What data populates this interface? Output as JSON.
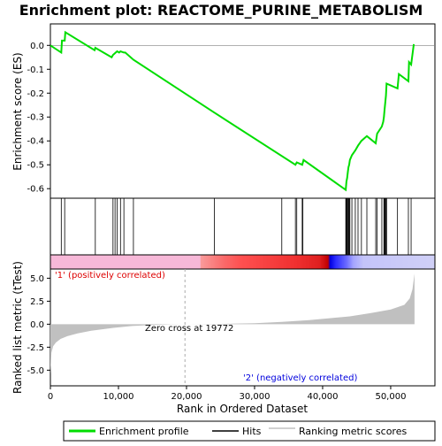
{
  "chart_data": {
    "type": "line",
    "title": "Enrichment plot: REACTOME_PURINE_METABOLISM",
    "xlabel": "Rank in Ordered Dataset",
    "es_ylabel": "Enrichment score (ES)",
    "metric_ylabel": "Ranked list metric (tTest)",
    "xlim": [
      0,
      56500
    ],
    "es_ylim": [
      -0.64,
      0.09
    ],
    "metric_ylim": [
      -6.7,
      6.0
    ],
    "x_ticks": [
      0,
      10000,
      20000,
      30000,
      40000,
      50000
    ],
    "x_tick_labels": [
      "0",
      "10,000",
      "20,000",
      "30,000",
      "40,000",
      "50,000"
    ],
    "es_ticks": [
      0.0,
      -0.1,
      -0.2,
      -0.3,
      -0.4,
      -0.5,
      -0.6
    ],
    "es_tick_labels": [
      "0.0",
      "-0.1",
      "-0.2",
      "-0.3",
      "-0.4",
      "-0.5",
      "-0.6"
    ],
    "metric_ticks": [
      5.0,
      2.5,
      0.0,
      -2.5,
      -5.0
    ],
    "metric_tick_labels": [
      "5.0",
      "2.5",
      "0.0",
      "-2.5",
      "-5.0"
    ],
    "grid": false,
    "legend_position": "bottom",
    "legend": {
      "enrichment_profile": "Enrichment profile",
      "hits": "Hits",
      "ranking_metric": "Ranking metric scores"
    },
    "annotations": {
      "positive_label": "'1' (positively correlated)",
      "negative_label": "'2' (negatively correlated)",
      "zero_cross": "Zero cross at 19772"
    },
    "zero_cross": 19772,
    "es_curve": {
      "x": [
        0,
        1600,
        1700,
        2100,
        2200,
        6500,
        6600,
        9000,
        9200,
        9600,
        9800,
        10100,
        10300,
        10800,
        11000,
        12200,
        24000,
        36000,
        36200,
        37000,
        37200,
        43400,
        43500,
        43600,
        43700,
        43800,
        43900,
        44000,
        44300,
        44800,
        45200,
        45700,
        46500,
        47800,
        48000,
        48700,
        48900,
        49000,
        49100,
        49200,
        49300,
        49400,
        51000,
        51200,
        52600,
        52700,
        53000,
        53400
      ],
      "y": [
        0.0,
        -0.03,
        0.02,
        0.02,
        0.055,
        -0.02,
        -0.01,
        -0.05,
        -0.04,
        -0.03,
        -0.025,
        -0.03,
        -0.025,
        -0.03,
        -0.03,
        -0.06,
        -0.28,
        -0.5,
        -0.49,
        -0.5,
        -0.48,
        -0.605,
        -0.57,
        -0.555,
        -0.53,
        -0.51,
        -0.5,
        -0.48,
        -0.46,
        -0.44,
        -0.42,
        -0.4,
        -0.38,
        -0.41,
        -0.37,
        -0.34,
        -0.32,
        -0.3,
        -0.27,
        -0.24,
        -0.21,
        -0.16,
        -0.18,
        -0.12,
        -0.15,
        -0.07,
        -0.08,
        0.005
      ]
    },
    "hits": [
      1600,
      2100,
      6600,
      9200,
      9500,
      9800,
      10300,
      10800,
      12200,
      24100,
      34000,
      36000,
      36200,
      37000,
      37100,
      43400,
      43500,
      43600,
      43700,
      43800,
      43900,
      44000,
      44300,
      44800,
      45200,
      45700,
      46500,
      47800,
      48000,
      48700,
      49000,
      49100,
      49200,
      49300,
      49400,
      51000,
      52600,
      53000
    ],
    "heat_gradient": [
      {
        "x": 0,
        "color": "#f7b8d8"
      },
      {
        "x": 22000,
        "color": "#f7b8d8"
      },
      {
        "x": 22100,
        "color": "#f99a9a"
      },
      {
        "x": 25500,
        "color": "#fa6a6a"
      },
      {
        "x": 28000,
        "color": "#ff5050"
      },
      {
        "x": 36000,
        "color": "#f03030"
      },
      {
        "x": 39500,
        "color": "#e02020"
      },
      {
        "x": 40800,
        "color": "#c00000"
      },
      {
        "x": 41100,
        "color": "#0000e0"
      },
      {
        "x": 41900,
        "color": "#2b2bff"
      },
      {
        "x": 43500,
        "color": "#6a6aff"
      },
      {
        "x": 44500,
        "color": "#a4a4ff"
      },
      {
        "x": 46000,
        "color": "#c4c4fa"
      },
      {
        "x": 56500,
        "color": "#d0d0f7"
      }
    ],
    "metric_curve": {
      "x": [
        0,
        150,
        400,
        800,
        1500,
        2500,
        4000,
        6000,
        9000,
        12000,
        15000,
        17500,
        19772,
        24000,
        30000,
        34000,
        38000,
        41000,
        44000,
        47000,
        50000,
        52000,
        52800,
        53200,
        53500
      ],
      "y": [
        -5.4,
        -3.1,
        -2.4,
        -2.0,
        -1.6,
        -1.3,
        -1.0,
        -0.72,
        -0.42,
        -0.2,
        -0.08,
        -0.02,
        0.0,
        0.03,
        0.1,
        0.25,
        0.45,
        0.65,
        0.85,
        1.2,
        1.6,
        2.1,
        2.8,
        3.8,
        5.5
      ]
    },
    "colors": {
      "enrichment_line": "#00dd00",
      "hit_line": "#000000",
      "metric_fill": "#c0c0c0",
      "zero_cross_line": "#aaaaaa",
      "positive_label": "#dd0000",
      "negative_label": "#0000dd"
    }
  }
}
